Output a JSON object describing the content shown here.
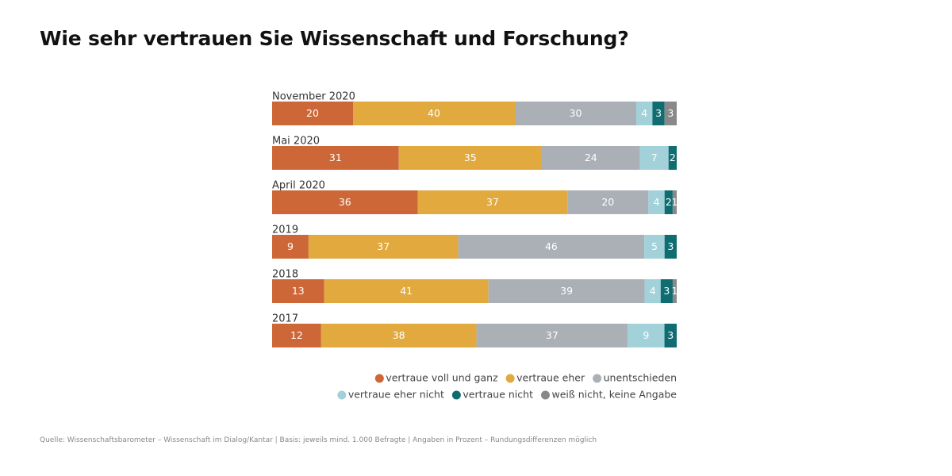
{
  "title": "Wie sehr vertrauen Sie Wissenschaft und Forschung?",
  "source": "Quelle: Wissenschaftsbarometer – Wissenschaft im Dialog/Kantar | Basis: jeweils mind. 1.000 Befragte | Angaben in Prozent – Rundungsdifferenzen möglich",
  "chart_data": {
    "type": "bar",
    "orientation": "horizontal",
    "stacked": true,
    "title": "Wie sehr vertrauen Sie Wissenschaft und Forschung?",
    "categories": [
      "November 2020",
      "Mai 2020",
      "April 2020",
      "2019",
      "2018",
      "2017"
    ],
    "series": [
      {
        "name": "vertraue voll und ganz",
        "color": "#cd6738",
        "values": [
          20,
          31,
          36,
          9,
          13,
          12
        ],
        "labels": [
          "20",
          "31",
          "36",
          "9",
          "13",
          "12"
        ]
      },
      {
        "name": "vertraue eher",
        "color": "#e1a93e",
        "values": [
          40,
          35,
          37,
          37,
          41,
          38
        ],
        "labels": [
          "40",
          "35",
          "37",
          "37",
          "41",
          "38"
        ]
      },
      {
        "name": "unentschieden",
        "color": "#abafb6",
        "values": [
          30,
          24,
          20,
          46,
          39,
          37
        ],
        "labels": [
          "30",
          "24",
          "20",
          "46",
          "39",
          "37"
        ]
      },
      {
        "name": "vertraue eher nicht",
        "color": "#a2d1d9",
        "values": [
          4,
          7,
          4,
          5,
          4,
          9
        ],
        "labels": [
          "4",
          "7",
          "4",
          "5",
          "4",
          "9"
        ]
      },
      {
        "name": "vertraue nicht",
        "color": "#0f6d72",
        "values": [
          3,
          2,
          2,
          3,
          3,
          3
        ],
        "labels": [
          "3",
          "2",
          "2",
          "3",
          "3",
          "3"
        ]
      },
      {
        "name": "weiß nicht, keine Angabe",
        "color": "#898989",
        "values": [
          3,
          0,
          1,
          0,
          1,
          0
        ],
        "labels": [
          "3",
          "",
          "1",
          "",
          "1",
          ""
        ]
      }
    ],
    "xlim": [
      0,
      100
    ],
    "grid": false,
    "legend": "bottom-right"
  }
}
